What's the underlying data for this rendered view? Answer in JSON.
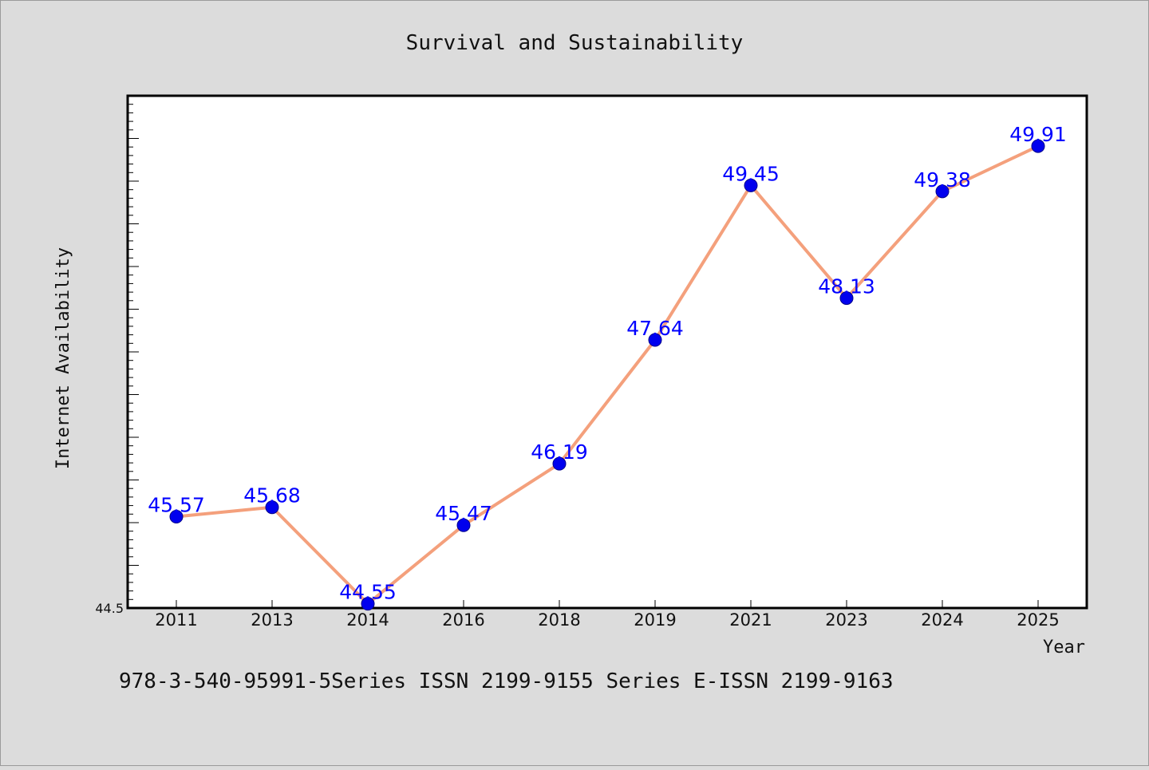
{
  "chart_data": {
    "type": "line",
    "title": "Survival and Sustainability",
    "xlabel": "Year",
    "ylabel": "Internet Availability",
    "categories": [
      "2011",
      "2013",
      "2014",
      "2016",
      "2018",
      "2019",
      "2021",
      "2023",
      "2024",
      "2025"
    ],
    "series": [
      {
        "values": [
          45.57,
          45.68,
          44.55,
          45.47,
          46.19,
          47.64,
          49.45,
          48.13,
          49.38,
          49.91
        ],
        "labels": [
          "45.57",
          "45.68",
          "44.55",
          "45.47",
          "46.19",
          "47.64",
          "49.45",
          "48.13",
          "49.38",
          "49.91"
        ],
        "line_color": "#f4a07c",
        "marker_color": "#0000ee",
        "label_color": "#0000ff"
      }
    ],
    "ylim": [
      44.5,
      50.5
    ],
    "yticks": [
      {
        "value": 44.5,
        "label": "44.5"
      }
    ],
    "minor_tick_step": 0.1,
    "major_tick_step": 0.5,
    "grid": false,
    "legend": "none"
  },
  "footer": {
    "text": "978-3-540-95991-5Series ISSN 2199-9155 Series E-ISSN 2199-9163"
  }
}
